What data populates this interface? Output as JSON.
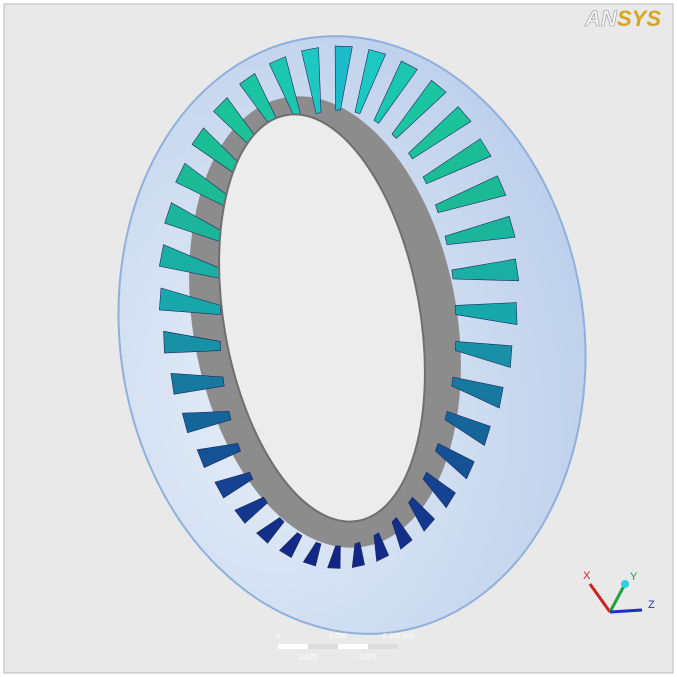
{
  "logo": {
    "prefix": "AN",
    "suffix": "SYS"
  },
  "triad": {
    "x": "X",
    "y": "Y",
    "z": "Z"
  },
  "scale_bar": {
    "top_labels": [
      "0",
      "0.050",
      "0.100 (m)"
    ],
    "bottom_labels": [
      "0.025",
      "0.075"
    ]
  }
}
